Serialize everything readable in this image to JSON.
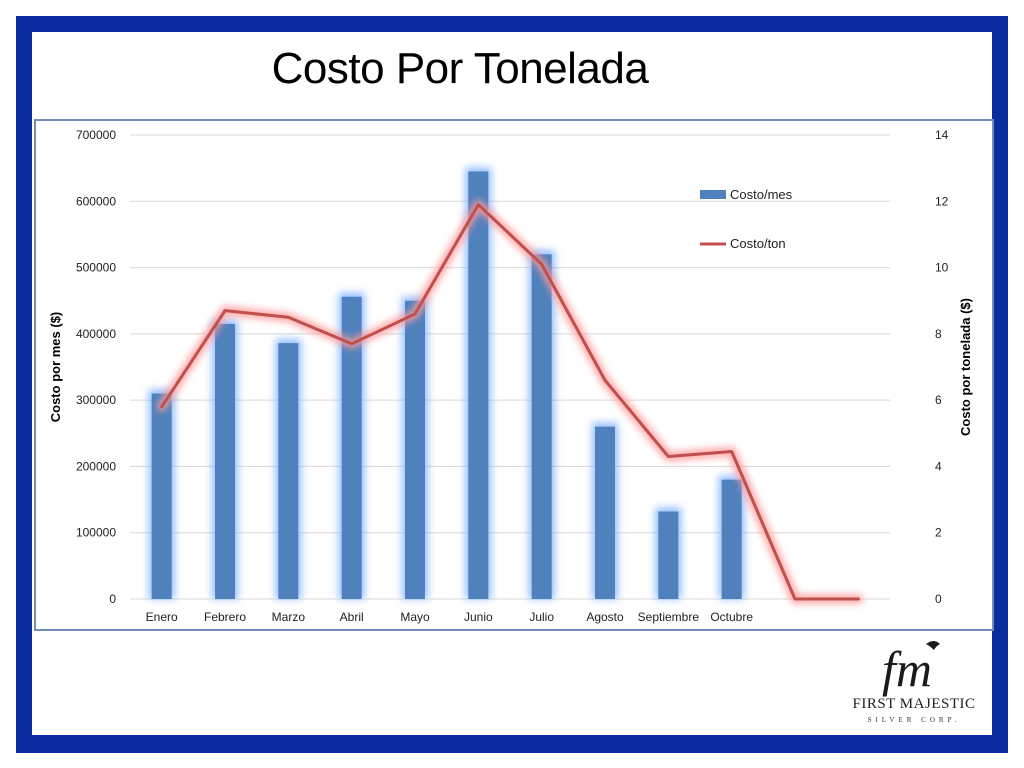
{
  "slide": {
    "title": "Costo Por Tonelada",
    "border_color": "#0b2c9e"
  },
  "logo": {
    "name": "First Majestic",
    "sub": "Silver Corp."
  },
  "chart_data": {
    "type": "bar",
    "categories": [
      "Enero",
      "Febrero",
      "Marzo",
      "Abril",
      "Mayo",
      "Junio",
      "Julio",
      "Agosto",
      "Septiembre",
      "Octubre",
      "",
      ""
    ],
    "series": [
      {
        "name": "Costo/mes",
        "type": "bar",
        "axis": "left",
        "color": "#4f81bd",
        "values": [
          310000,
          415000,
          386000,
          456000,
          450000,
          645000,
          520000,
          260000,
          132000,
          180000,
          null,
          null
        ]
      },
      {
        "name": "Costo/ton",
        "type": "line",
        "axis": "right",
        "color": "#c0504d",
        "values": [
          5.8,
          8.7,
          8.5,
          7.7,
          8.6,
          11.9,
          10.1,
          6.6,
          4.3,
          4.45,
          0,
          0
        ]
      }
    ],
    "ylabel": "Costo por mes ($)",
    "y2label": "Costo por tonelada ($)",
    "ylim": [
      0,
      700000
    ],
    "y2lim": [
      0,
      14
    ],
    "yticks": [
      "0",
      "100000",
      "200000",
      "300000",
      "400000",
      "500000",
      "600000",
      "700000"
    ],
    "y2ticks": [
      "0",
      "2",
      "4",
      "6",
      "8",
      "10",
      "12",
      "14"
    ],
    "grid": true,
    "legend_position": "top-right"
  }
}
